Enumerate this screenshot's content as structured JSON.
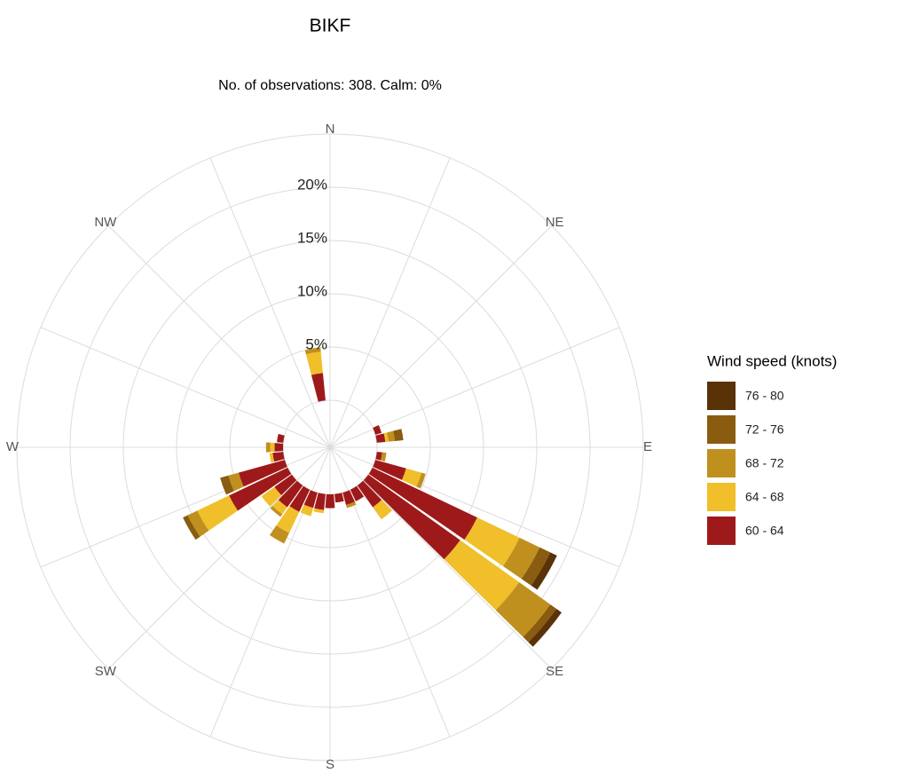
{
  "chart_data": {
    "type": "windrose",
    "title": "BIKF",
    "subtitle": "No. of observations: 308. Calm: 0%",
    "legend_title": "Wind speed (knots)",
    "x": [
      0,
      10,
      20,
      30,
      40,
      50,
      60,
      70,
      80,
      90,
      100,
      110,
      120,
      130,
      140,
      150,
      160,
      170,
      180,
      190,
      200,
      210,
      220,
      230,
      240,
      250,
      260,
      270,
      280,
      290,
      300,
      310,
      320,
      330,
      340,
      350
    ],
    "xticks": [
      {
        "value": 0,
        "label": "N"
      },
      {
        "value": 45,
        "label": "NE"
      },
      {
        "value": 90,
        "label": "E"
      },
      {
        "value": 135,
        "label": "SE"
      },
      {
        "value": 180,
        "label": "S"
      },
      {
        "value": 225,
        "label": "SW"
      },
      {
        "value": 270,
        "label": "W"
      },
      {
        "value": 315,
        "label": "NW"
      }
    ],
    "ylim": [
      0,
      25
    ],
    "yticks": [
      {
        "value": 5,
        "label": "5%"
      },
      {
        "value": 10,
        "label": "10%"
      },
      {
        "value": 15,
        "label": "15%"
      },
      {
        "value": 20,
        "label": "20%"
      }
    ],
    "grid": true,
    "series": [
      {
        "name": "60 - 64",
        "color": "#9e1a1a",
        "values": [
          0,
          0,
          0,
          0,
          0,
          0,
          0,
          0.6,
          0.8,
          0,
          0.5,
          3.0,
          10.9,
          10.6,
          2.5,
          1.2,
          1.2,
          0.8,
          1.3,
          1.5,
          1.5,
          2.3,
          2.5,
          2.0,
          6.1,
          4.5,
          1.0,
          0.8,
          0.6,
          0,
          0,
          0,
          0,
          0,
          0,
          2.6
        ]
      },
      {
        "name": "64 - 68",
        "color": "#f0bf2a",
        "values": [
          0,
          0,
          0,
          0,
          0,
          0,
          0,
          0,
          0.3,
          0,
          0,
          1.5,
          4.4,
          6.8,
          1.4,
          0,
          0,
          0,
          0,
          0.3,
          0.8,
          2.2,
          0.8,
          1.5,
          3.3,
          0,
          0.3,
          0.4,
          0,
          0,
          0,
          0,
          0,
          0,
          0,
          2.0
        ]
      },
      {
        "name": "68 - 72",
        "color": "#c0901e",
        "values": [
          0,
          0,
          0,
          0,
          0,
          0,
          0,
          0,
          0.6,
          0,
          0.4,
          0.4,
          2.1,
          3.6,
          0,
          0,
          0.3,
          0,
          0,
          0,
          0,
          1.1,
          0.3,
          0,
          1.0,
          1.0,
          0,
          0.4,
          0,
          0,
          0,
          0,
          0,
          0,
          0,
          0.4
        ]
      },
      {
        "name": "72 - 76",
        "color": "#8a5c10",
        "values": [
          0,
          0,
          0,
          0,
          0,
          0,
          0,
          0,
          0.8,
          0,
          0,
          0,
          1.1,
          0.7,
          0,
          0,
          0,
          0,
          0,
          0,
          0,
          0,
          0,
          0,
          0.5,
          0.8,
          0,
          0,
          0,
          0,
          0,
          0,
          0,
          0,
          0,
          0
        ]
      },
      {
        "name": "76 - 80",
        "color": "#5a3208",
        "values": [
          0,
          0,
          0,
          0,
          0,
          0,
          0,
          0,
          0,
          0,
          0,
          0,
          0.7,
          0.6,
          0,
          0,
          0,
          0,
          0,
          0,
          0,
          0,
          0,
          0,
          0,
          0,
          0,
          0,
          0,
          0,
          0,
          0,
          0,
          0,
          0,
          0
        ]
      }
    ]
  }
}
